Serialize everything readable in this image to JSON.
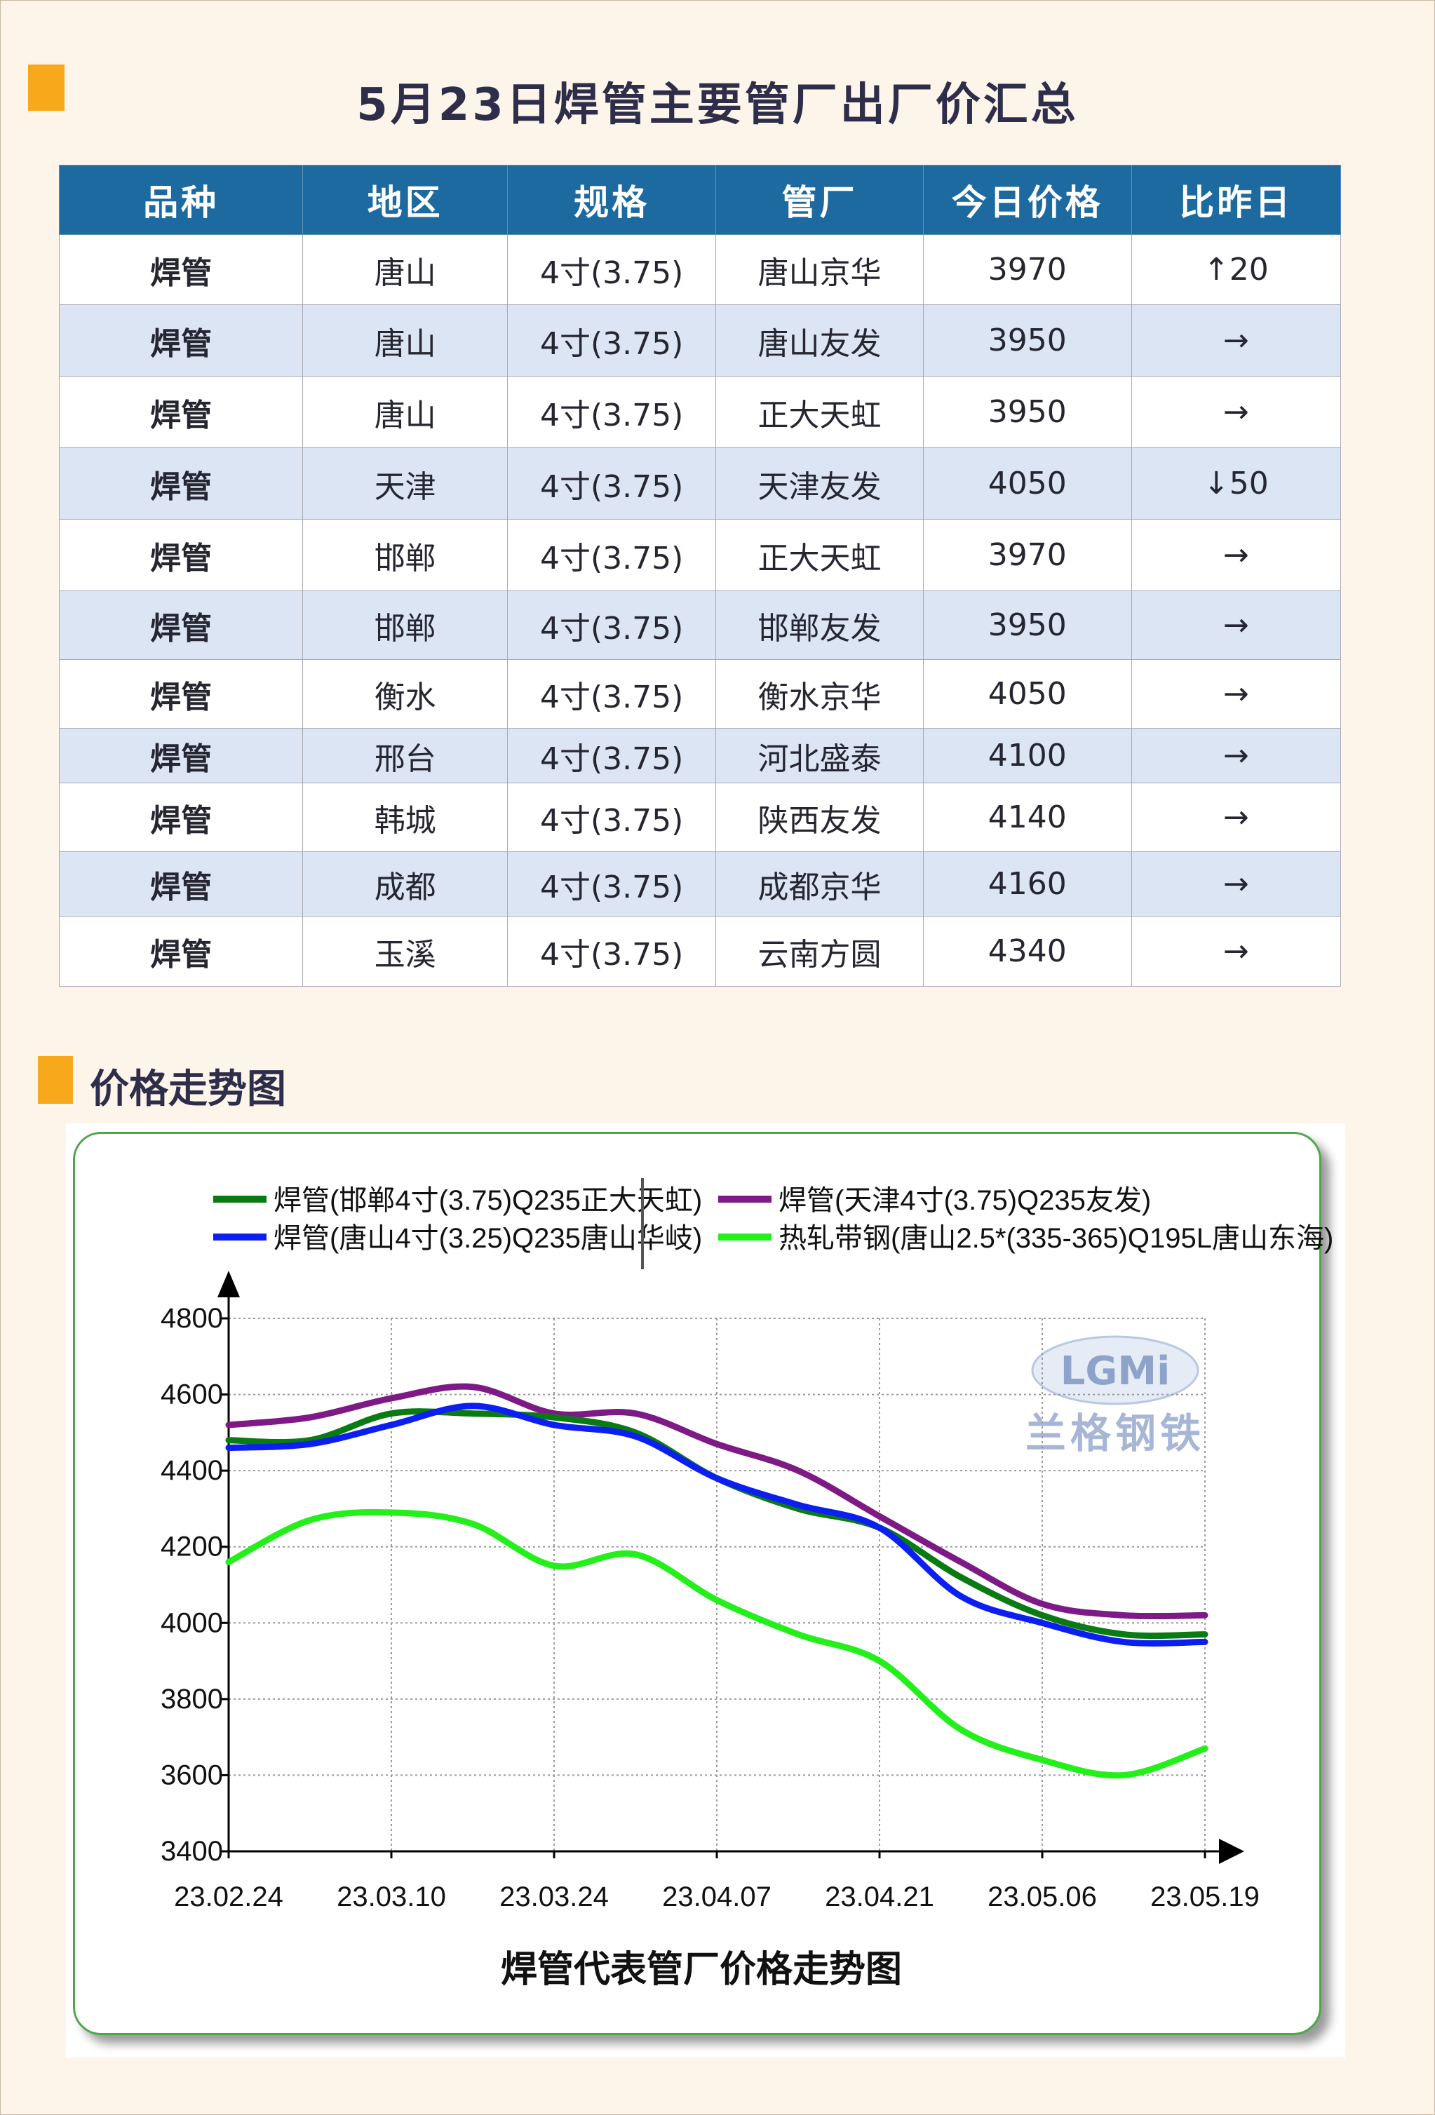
{
  "title": "5月23日焊管主要管厂出厂价汇总",
  "section_title": "价格走势图",
  "table": {
    "headers": [
      "品种",
      "地区",
      "规格",
      "管厂",
      "今日价格",
      "比昨日"
    ],
    "rows": [
      {
        "kind": "焊管",
        "region": "唐山",
        "spec": "4寸(3.75)",
        "mill": "唐山京华",
        "price": "3970",
        "change": "↑20",
        "trend": "up"
      },
      {
        "kind": "焊管",
        "region": "唐山",
        "spec": "4寸(3.75)",
        "mill": "唐山友发",
        "price": "3950",
        "change": "→",
        "trend": "flat"
      },
      {
        "kind": "焊管",
        "region": "唐山",
        "spec": "4寸(3.75)",
        "mill": "正大天虹",
        "price": "3950",
        "change": "→",
        "trend": "flat"
      },
      {
        "kind": "焊管",
        "region": "天津",
        "spec": "4寸(3.75)",
        "mill": "天津友发",
        "price": "4050",
        "change": "↓50",
        "trend": "down"
      },
      {
        "kind": "焊管",
        "region": "邯郸",
        "spec": "4寸(3.75)",
        "mill": "正大天虹",
        "price": "3970",
        "change": "→",
        "trend": "flat"
      },
      {
        "kind": "焊管",
        "region": "邯郸",
        "spec": "4寸(3.75)",
        "mill": "邯郸友发",
        "price": "3950",
        "change": "→",
        "trend": "flat"
      },
      {
        "kind": "焊管",
        "region": "衡水",
        "spec": "4寸(3.75)",
        "mill": "衡水京华",
        "price": "4050",
        "change": "→",
        "trend": "flat"
      },
      {
        "kind": "焊管",
        "region": "邢台",
        "spec": "4寸(3.75)",
        "mill": "河北盛泰",
        "price": "4100",
        "change": "→",
        "trend": "flat"
      },
      {
        "kind": "焊管",
        "region": "韩城",
        "spec": "4寸(3.75)",
        "mill": "陕西友发",
        "price": "4140",
        "change": "→",
        "trend": "flat"
      },
      {
        "kind": "焊管",
        "region": "成都",
        "spec": "4寸(3.75)",
        "mill": "成都京华",
        "price": "4160",
        "change": "→",
        "trend": "flat"
      },
      {
        "kind": "焊管",
        "region": "玉溪",
        "spec": "4寸(3.75)",
        "mill": "云南方圆",
        "price": "4340",
        "change": "→",
        "trend": "flat"
      }
    ]
  },
  "colors": {
    "accent": "#f7a81b",
    "header": "#1d6aa1",
    "row_alt": "#dbe5f3",
    "up": "#e2202a",
    "down": "#17a14a"
  },
  "chart_data": {
    "type": "line",
    "title": "焊管代表管厂价格走势图",
    "watermark": {
      "logo": "LGMi",
      "text": "兰格钢铁"
    },
    "ylim": [
      3400,
      4800
    ],
    "yticks": [
      "3400",
      "3600",
      "3800",
      "4000",
      "4200",
      "4400",
      "4600",
      "4800"
    ],
    "xticks": [
      "23.02.24",
      "23.03.10",
      "23.03.24",
      "23.04.07",
      "23.04.21",
      "23.05.06",
      "23.05.19"
    ],
    "grid": true,
    "legend": "top",
    "x": [
      0,
      0.5,
      1,
      1.5,
      2,
      2.5,
      3,
      3.5,
      4,
      4.5,
      5,
      5.5,
      6
    ],
    "series": [
      {
        "name": "焊管(邯郸4寸(3.75)Q235正大天虹)",
        "color": "#0a7a12",
        "values": [
          4480,
          4480,
          4550,
          4550,
          4540,
          4500,
          4380,
          4300,
          4250,
          4120,
          4020,
          3970,
          3970
        ]
      },
      {
        "name": "焊管(唐山4寸(3.25)Q235唐山华岐)",
        "color": "#0c1ff2",
        "values": [
          4460,
          4470,
          4520,
          4570,
          4520,
          4490,
          4380,
          4310,
          4250,
          4070,
          4000,
          3950,
          3950
        ]
      },
      {
        "name": "焊管(天津4寸(3.75)Q235友发)",
        "color": "#7d1a86",
        "values": [
          4520,
          4540,
          4590,
          4620,
          4550,
          4550,
          4470,
          4400,
          4280,
          4160,
          4050,
          4020,
          4020
        ]
      },
      {
        "name": "热轧带钢(唐山2.5*(335-365)Q195L唐山东海)",
        "color": "#23f01a",
        "values": [
          4160,
          4270,
          4290,
          4260,
          4150,
          4180,
          4060,
          3970,
          3900,
          3720,
          3640,
          3600,
          3670
        ]
      }
    ]
  }
}
